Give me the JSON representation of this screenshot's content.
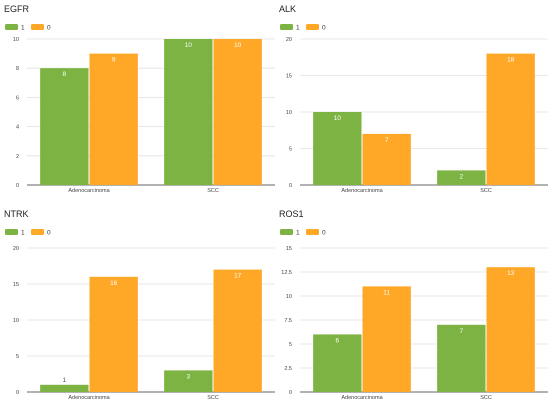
{
  "chart_data": [
    {
      "type": "bar",
      "title": "EGFR",
      "categories": [
        "Adenocarcinoma",
        "SCC"
      ],
      "series": [
        {
          "name": "1",
          "values": [
            8,
            10
          ],
          "color": "#7cb342"
        },
        {
          "name": "0",
          "values": [
            9,
            10
          ],
          "color": "#ffa726"
        }
      ],
      "ylim": [
        0,
        10
      ],
      "yticks": [
        0,
        2,
        4,
        6,
        8,
        10
      ],
      "grid": true,
      "legend": "top-left"
    },
    {
      "type": "bar",
      "title": "ALK",
      "categories": [
        "Adenocarcinoma",
        "SCC"
      ],
      "series": [
        {
          "name": "1",
          "values": [
            10,
            2
          ],
          "color": "#7cb342"
        },
        {
          "name": "0",
          "values": [
            7,
            18
          ],
          "color": "#ffa726"
        }
      ],
      "ylim": [
        0,
        20
      ],
      "yticks": [
        0,
        5,
        10,
        15,
        20
      ],
      "grid": true,
      "legend": "top-left"
    },
    {
      "type": "bar",
      "title": "NTRK",
      "categories": [
        "Adenocarcinoma",
        "SCC"
      ],
      "series": [
        {
          "name": "1",
          "values": [
            1,
            3
          ],
          "color": "#7cb342"
        },
        {
          "name": "0",
          "values": [
            16,
            17
          ],
          "color": "#ffa726"
        }
      ],
      "ylim": [
        0,
        20
      ],
      "yticks": [
        0,
        5,
        10,
        15,
        20
      ],
      "grid": true,
      "legend": "top-left"
    },
    {
      "type": "bar",
      "title": "ROS1",
      "categories": [
        "Adenocarcinoma",
        "SCC"
      ],
      "series": [
        {
          "name": "1",
          "values": [
            6,
            7
          ],
          "color": "#7cb342"
        },
        {
          "name": "0",
          "values": [
            11,
            13
          ],
          "color": "#ffa726"
        }
      ],
      "ylim": [
        0,
        15
      ],
      "yticks": [
        0,
        2.5,
        5,
        7.5,
        10,
        12.5,
        15
      ],
      "grid": true,
      "legend": "top-left"
    }
  ]
}
